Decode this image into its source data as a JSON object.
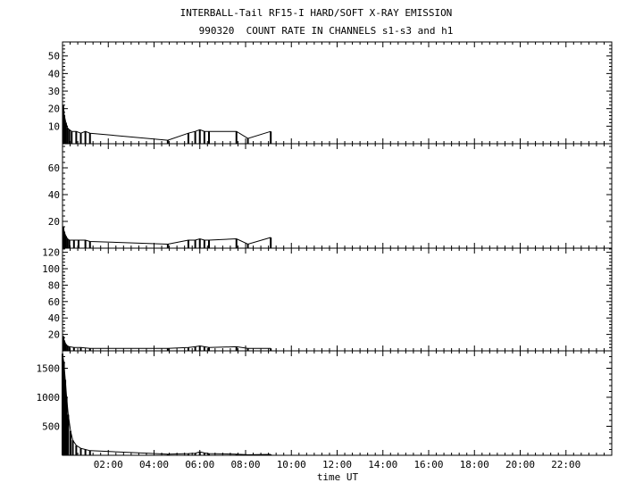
{
  "header": {
    "title": "INTERBALL-Tail RF15-I HARD/SOFT X-RAY EMISSION",
    "subtitle": "990320  COUNT RATE IN CHANNELS s1-s3 and h1"
  },
  "chart_data": {
    "type": "line",
    "title": "INTERBALL-Tail RF15-I HARD/SOFT X-RAY EMISSION",
    "subtitle": "990320  COUNT RATE IN CHANNELS s1-s3 and h1",
    "xlabel": "time UT",
    "xlim": [
      0,
      24
    ],
    "x_ticks": [
      "02:00",
      "04:00",
      "06:00",
      "08:00",
      "10:00",
      "12:00",
      "14:00",
      "16:00",
      "18:00",
      "20:00",
      "22:00"
    ],
    "grid": false,
    "panels": [
      {
        "ylim": [
          0,
          58
        ],
        "y_ticks": [
          "10",
          "20",
          "30",
          "40",
          "50"
        ],
        "y_tick_values": [
          10,
          20,
          30,
          40,
          50
        ],
        "series": [
          {
            "points": [
              [
                0.03,
                22
              ],
              [
                0.08,
                16
              ],
              [
                0.15,
                12
              ],
              [
                0.22,
                9
              ],
              [
                0.3,
                8
              ],
              [
                0.4,
                7
              ],
              [
                0.6,
                7
              ],
              [
                0.8,
                6
              ],
              [
                1.0,
                7
              ],
              [
                1.2,
                6
              ],
              [
                4.6,
                2
              ],
              [
                5.5,
                6
              ],
              [
                5.8,
                7
              ],
              [
                6.0,
                8
              ],
              [
                6.2,
                7
              ],
              [
                6.4,
                7
              ],
              [
                7.6,
                7
              ],
              [
                8.1,
                3
              ],
              [
                9.1,
                7
              ]
            ]
          }
        ]
      },
      {
        "ylim": [
          0,
          78
        ],
        "y_ticks": [
          "20",
          "40",
          "60"
        ],
        "y_tick_values": [
          20,
          40,
          60
        ],
        "series": [
          {
            "points": [
              [
                0.03,
                16
              ],
              [
                0.08,
                12
              ],
              [
                0.15,
                9
              ],
              [
                0.22,
                7
              ],
              [
                0.3,
                6
              ],
              [
                0.5,
                6
              ],
              [
                0.7,
                6
              ],
              [
                1.0,
                6
              ],
              [
                1.2,
                5
              ],
              [
                4.6,
                3
              ],
              [
                5.5,
                6
              ],
              [
                5.8,
                6
              ],
              [
                6.0,
                7
              ],
              [
                6.2,
                6
              ],
              [
                6.4,
                6
              ],
              [
                7.6,
                7
              ],
              [
                8.1,
                3
              ],
              [
                9.1,
                8
              ]
            ]
          }
        ]
      },
      {
        "ylim": [
          0,
          125
        ],
        "y_ticks": [
          "20",
          "40",
          "60",
          "80",
          "100",
          "120"
        ],
        "y_tick_values": [
          20,
          40,
          60,
          80,
          100,
          120
        ],
        "series": [
          {
            "points": [
              [
                0.03,
                18
              ],
              [
                0.08,
                12
              ],
              [
                0.15,
                8
              ],
              [
                0.22,
                6
              ],
              [
                0.3,
                5
              ],
              [
                0.5,
                4
              ],
              [
                0.8,
                4
              ],
              [
                1.2,
                3
              ],
              [
                4.6,
                3
              ],
              [
                5.5,
                4
              ],
              [
                5.8,
                5
              ],
              [
                6.0,
                6
              ],
              [
                6.2,
                5
              ],
              [
                6.4,
                4
              ],
              [
                7.6,
                5
              ],
              [
                8.1,
                3
              ],
              [
                9.1,
                3
              ]
            ]
          }
        ]
      },
      {
        "ylim": [
          0,
          1800
        ],
        "y_ticks": [
          "500",
          "1000",
          "1500"
        ],
        "y_tick_values": [
          500,
          1000,
          1500
        ],
        "series": [
          {
            "points": [
              [
                0.0,
                1750
              ],
              [
                0.06,
                1600
              ],
              [
                0.12,
                1300
              ],
              [
                0.18,
                1000
              ],
              [
                0.25,
                700
              ],
              [
                0.35,
                420
              ],
              [
                0.45,
                260
              ],
              [
                0.6,
                170
              ],
              [
                0.8,
                120
              ],
              [
                1.0,
                100
              ],
              [
                1.2,
                80
              ],
              [
                4.6,
                20
              ],
              [
                5.5,
                30
              ],
              [
                5.8,
                35
              ],
              [
                6.0,
                60
              ],
              [
                6.2,
                40
              ],
              [
                6.4,
                30
              ],
              [
                7.6,
                20
              ],
              [
                8.1,
                10
              ],
              [
                9.1,
                15
              ]
            ]
          }
        ]
      }
    ]
  }
}
